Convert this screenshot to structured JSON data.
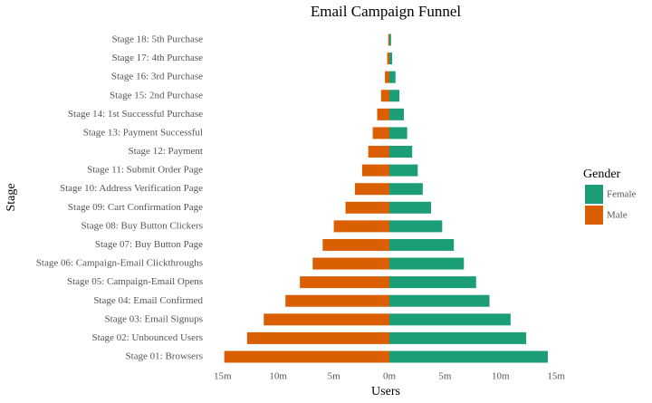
{
  "chart_data": {
    "type": "diverging-bar",
    "title": "Email Campaign Funnel",
    "x_label": "Users",
    "y_label": "Stage",
    "legend_title": "Gender",
    "categories": [
      "Stage 01: Browsers",
      "Stage 02: Unbounced Users",
      "Stage 03: Email Signups",
      "Stage 04: Email Confirmed",
      "Stage 05: Campaign-Email Opens",
      "Stage 06: Campaign-Email Clickthroughs",
      "Stage 07: Buy Button Page",
      "Stage 08: Buy Button Clickers",
      "Stage 09: Cart Confirmation Page",
      "Stage 10: Address Verification Page",
      "Stage 11: Submit Order Page",
      "Stage 12: Payment",
      "Stage 13: Payment Successful",
      "Stage 14: 1st Successful Purchase",
      "Stage 15: 2nd Purchase",
      "Stage 16: 3rd Purchase",
      "Stage 17: 4th Purchase",
      "Stage 18: 5th Purchase"
    ],
    "series": [
      {
        "name": "Female",
        "color": "#1b9e77",
        "values": [
          14.25,
          12.3,
          10.9,
          9.0,
          7.8,
          6.7,
          5.8,
          4.75,
          3.75,
          3.0,
          2.55,
          2.05,
          1.6,
          1.3,
          0.9,
          0.55,
          0.25,
          0.15
        ]
      },
      {
        "name": "Male",
        "color": "#d95f02",
        "values": [
          -14.85,
          -12.8,
          -11.3,
          -9.35,
          -8.05,
          -6.9,
          -6.0,
          -5.0,
          -3.95,
          -3.1,
          -2.45,
          -1.9,
          -1.5,
          -1.1,
          -0.75,
          -0.4,
          -0.2,
          -0.1
        ]
      }
    ],
    "xlim": [
      -15.8,
      15.8
    ],
    "xticks": [
      {
        "value": -15,
        "label": "15m"
      },
      {
        "value": -10,
        "label": "10m"
      },
      {
        "value": -5,
        "label": "5m"
      },
      {
        "value": 0,
        "label": "0m"
      },
      {
        "value": 5,
        "label": "5m"
      },
      {
        "value": 10,
        "label": "10m"
      },
      {
        "value": 15,
        "label": "15m"
      }
    ],
    "grid": false
  }
}
